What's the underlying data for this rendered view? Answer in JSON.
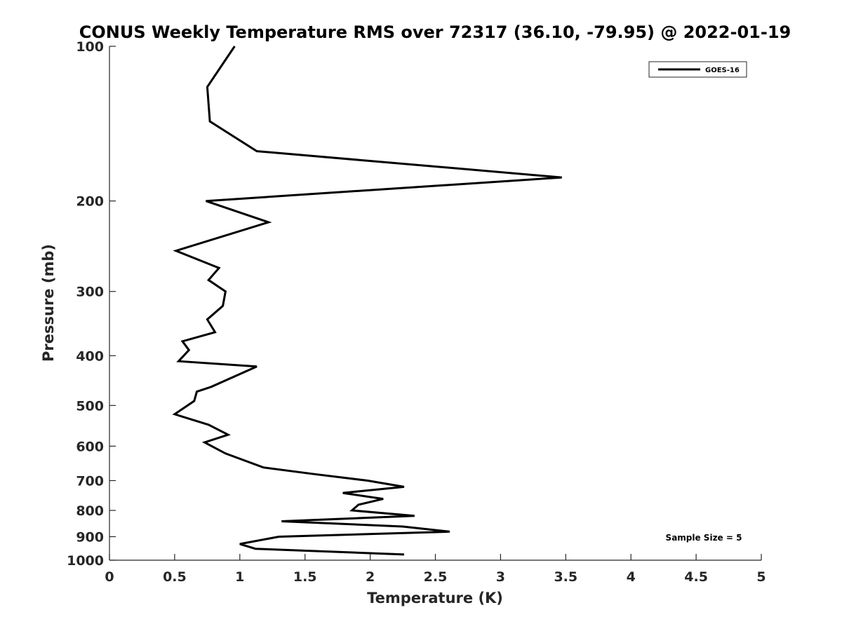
{
  "chart_data": {
    "type": "line",
    "title": "CONUS Weekly Temperature RMS over 72317 (36.10, -79.95) @ 2022-01-19",
    "xlabel": "Temperature (K)",
    "ylabel": "Pressure (mb)",
    "xlim": [
      0,
      5
    ],
    "ylim": [
      100,
      1000
    ],
    "yscale": "log",
    "y_reversed": true,
    "x_ticks": [
      "0",
      "0.5",
      "1",
      "1.5",
      "2",
      "2.5",
      "3",
      "3.5",
      "4",
      "4.5",
      "5"
    ],
    "y_ticks": [
      "100",
      "200",
      "300",
      "400",
      "500",
      "600",
      "700",
      "800",
      "900",
      "1000"
    ],
    "grid": false,
    "legend_position": "top-right",
    "annotation": "Sample Size = 5",
    "series": [
      {
        "name": "GOES-16",
        "color": "#000000",
        "x": [
          0.96,
          0.75,
          0.77,
          1.13,
          3.47,
          0.74,
          1.22,
          0.51,
          0.84,
          0.76,
          0.89,
          0.87,
          0.75,
          0.81,
          0.56,
          0.61,
          0.53,
          1.13,
          0.78,
          0.67,
          0.65,
          0.5,
          0.76,
          0.91,
          0.73,
          0.89,
          1.18,
          1.57,
          1.98,
          2.26,
          1.79,
          2.1,
          1.91,
          1.86,
          2.34,
          1.32,
          2.25,
          2.61,
          1.3,
          1.0,
          1.12,
          2.26
        ],
        "y": [
          100,
          120,
          140,
          160,
          180,
          200,
          220,
          250,
          270,
          285,
          300,
          320,
          340,
          360,
          375,
          390,
          410,
          420,
          460,
          470,
          490,
          520,
          545,
          570,
          590,
          620,
          660,
          680,
          700,
          720,
          740,
          760,
          780,
          800,
          820,
          840,
          860,
          880,
          900,
          930,
          950,
          975
        ]
      }
    ]
  }
}
